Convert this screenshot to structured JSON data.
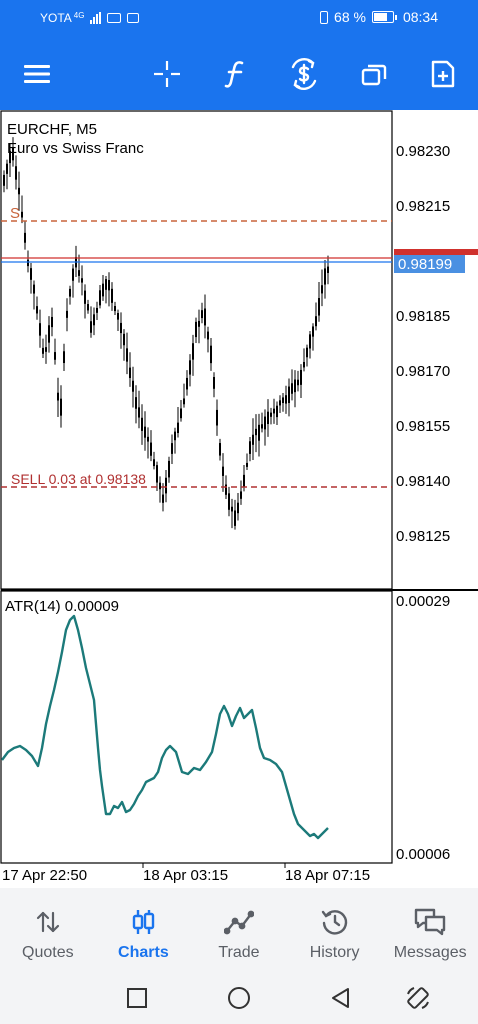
{
  "status_bar": {
    "carrier": "YOTA",
    "network": "4G",
    "battery": "68 %",
    "time": "08:34"
  },
  "toolbar": {
    "icons": [
      "menu-icon",
      "crosshair-icon",
      "function-icon",
      "trade-dollar-icon",
      "windows-icon",
      "new-order-icon"
    ]
  },
  "chart": {
    "symbol_timeframe": "EURCHF, M5",
    "description": "Euro vs Swiss Franc",
    "sl_label": "S",
    "position_label": "SELL 0.03 at 0.98138",
    "current_price": "0.98199",
    "price_ticks": [
      "0.98230",
      "0.98215",
      "0.98185",
      "0.98170",
      "0.98155",
      "0.98140",
      "0.98125"
    ],
    "indicator_label": "ATR(14) 0.00009",
    "indicator_ticks": [
      "0.00029",
      "0.00006"
    ],
    "time_labels": [
      "17 Apr 22:50",
      "18 Apr 03:15",
      "18 Apr 07:15"
    ],
    "colors": {
      "bid_line": "#1a74ee",
      "ask_line": "#d0312d",
      "sl_line": "#c8643c",
      "position_line": "#b03030",
      "atr_line": "#1c7a7a",
      "price_badge": "#4a90e2"
    }
  },
  "chart_data": {
    "type": "candlestick",
    "symbol": "EURCHF",
    "timeframe": "M5",
    "ylim": [
      0.98116,
      0.9824
    ],
    "indicator": {
      "name": "ATR(14)",
      "last_value": 9e-05,
      "ylim": [
        6e-05,
        0.00029
      ]
    }
  },
  "bottom_nav": {
    "items": [
      {
        "label": "Quotes",
        "icon": "quotes-icon"
      },
      {
        "label": "Charts",
        "icon": "charts-icon"
      },
      {
        "label": "Trade",
        "icon": "trade-icon"
      },
      {
        "label": "History",
        "icon": "history-icon"
      },
      {
        "label": "Messages",
        "icon": "messages-icon"
      }
    ],
    "active": "Charts"
  }
}
